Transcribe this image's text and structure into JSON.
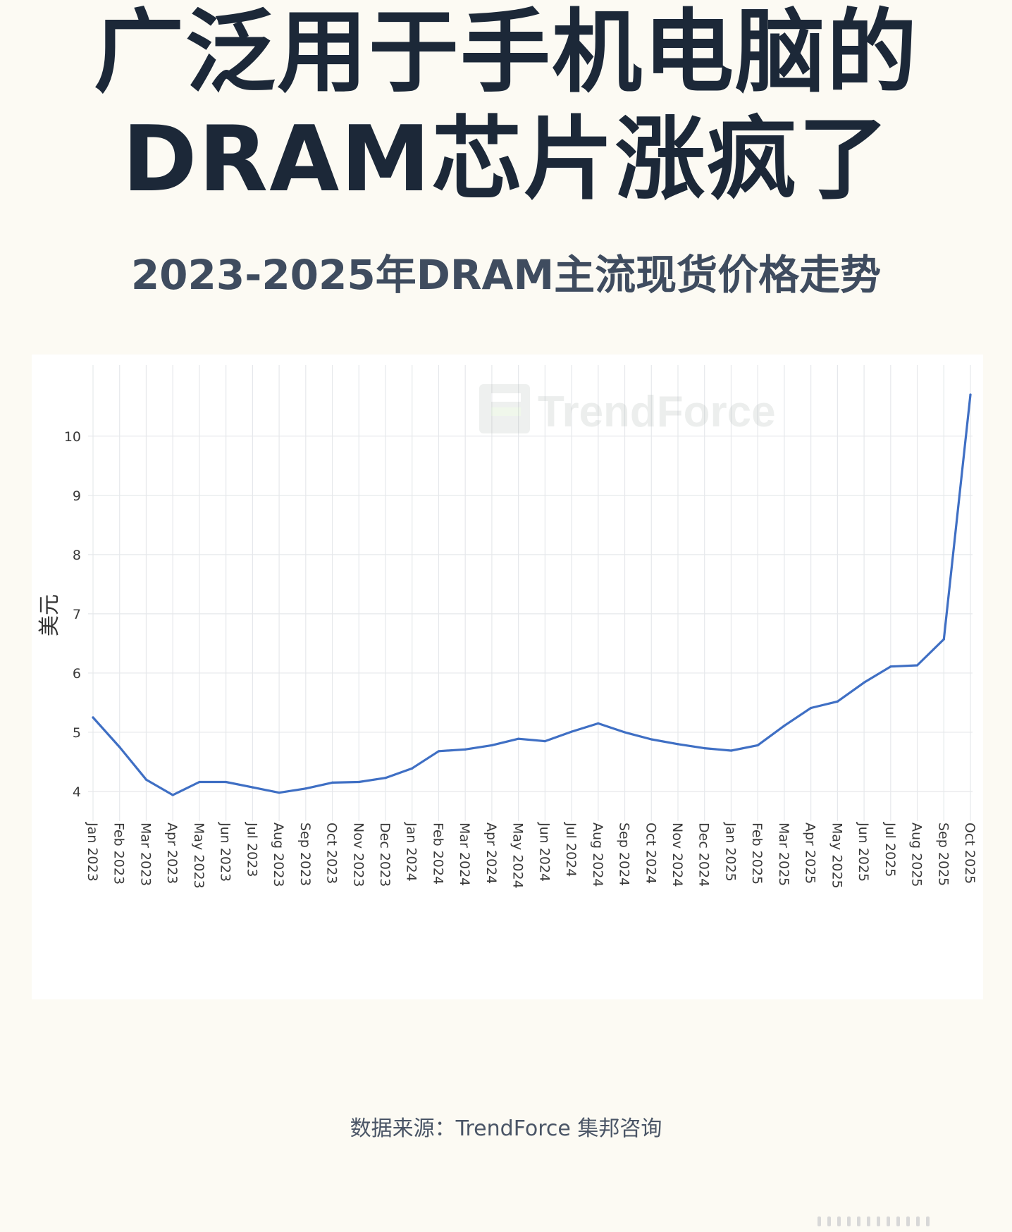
{
  "headline": {
    "line1": "广泛用于手机电脑的",
    "line2": "DRAM芯片涨疯了"
  },
  "chart_data": {
    "type": "line",
    "title": "2023-2025年DRAM主流现货价格走势",
    "ylabel": "美元",
    "xlabel": "",
    "ylim": [
      3.5,
      11.2
    ],
    "yticks": [
      4,
      5,
      6,
      7,
      8,
      9,
      10
    ],
    "grid": true,
    "legend": "none",
    "line_color": "#3f6fc4",
    "watermark": "TrendForce",
    "categories": [
      "Jan 2023",
      "Feb 2023",
      "Mar 2023",
      "Apr 2023",
      "May 2023",
      "Jun 2023",
      "Jul 2023",
      "Aug 2023",
      "Sep 2023",
      "Oct 2023",
      "Nov 2023",
      "Dec 2023",
      "Jan 2024",
      "Feb 2024",
      "Mar 2024",
      "Apr 2024",
      "May 2024",
      "Jun 2024",
      "Jul 2024",
      "Aug 2024",
      "Sep 2024",
      "Oct 2024",
      "Nov 2024",
      "Dec 2024",
      "Jan 2025",
      "Feb 2025",
      "Mar 2025",
      "Apr 2025",
      "May 2025",
      "Jun 2025",
      "Jul 2025",
      "Aug 2025",
      "Sep 2025",
      "Oct 2025"
    ],
    "values": [
      5.25,
      4.75,
      4.2,
      3.94,
      4.16,
      4.16,
      4.07,
      3.98,
      4.05,
      4.15,
      4.16,
      4.23,
      4.39,
      4.68,
      4.71,
      4.78,
      4.89,
      4.85,
      5.01,
      5.15,
      5.0,
      4.88,
      4.8,
      4.73,
      4.69,
      4.78,
      5.11,
      5.41,
      5.52,
      5.84,
      6.11,
      6.13,
      6.57,
      10.7
    ]
  },
  "source": "数据来源：TrendForce 集邦咨询"
}
